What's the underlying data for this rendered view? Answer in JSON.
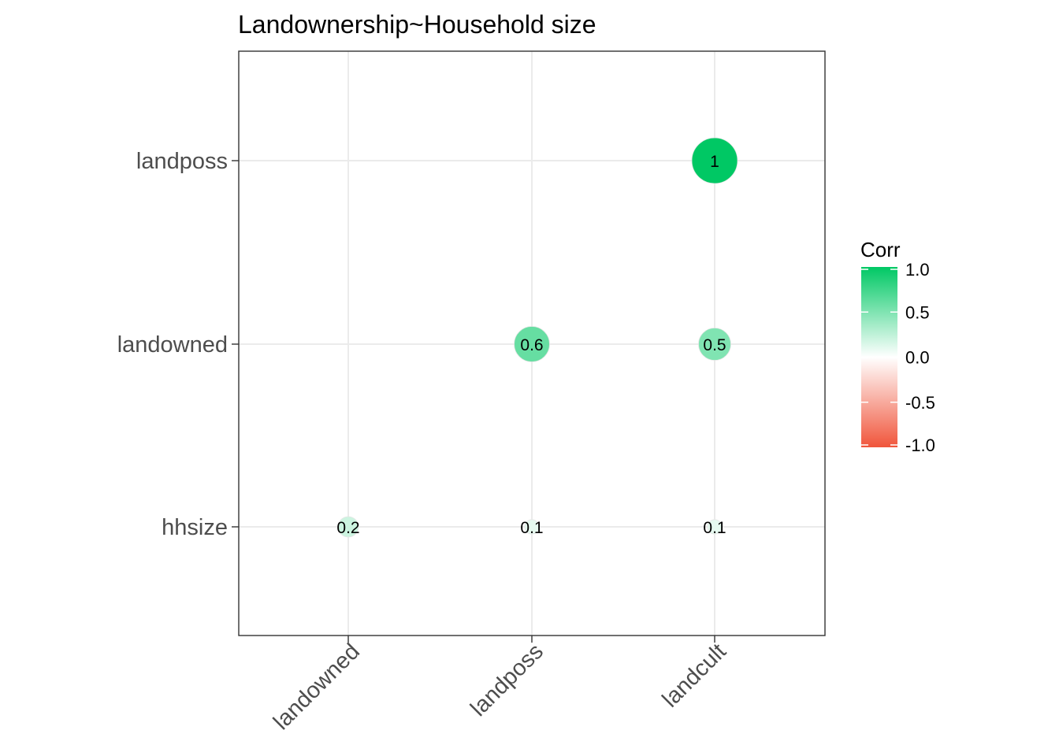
{
  "chart_data": {
    "type": "heatmap",
    "style": "circle correlation matrix (lower triangle)",
    "title": "Landownership~Household size",
    "x_categories": [
      "landowned",
      "landposs",
      "landcult"
    ],
    "y_categories": [
      "hhsize",
      "landowned",
      "landposs"
    ],
    "cells": [
      {
        "x": "landowned",
        "y": "hhsize",
        "value": 0.2,
        "label": "0.2"
      },
      {
        "x": "landposs",
        "y": "hhsize",
        "value": 0.1,
        "label": "0.1"
      },
      {
        "x": "landcult",
        "y": "hhsize",
        "value": 0.1,
        "label": "0.1"
      },
      {
        "x": "landposs",
        "y": "landowned",
        "value": 0.6,
        "label": "0.6"
      },
      {
        "x": "landcult",
        "y": "landowned",
        "value": 0.5,
        "label": "0.5"
      },
      {
        "x": "landcult",
        "y": "landposs",
        "value": 1.0,
        "label": "1"
      }
    ],
    "legend": {
      "title": "Corr",
      "position": "right",
      "ticks": [
        "1.0",
        "0.5",
        "0.0",
        "-0.5",
        "-1.0"
      ],
      "range": [
        -1.0,
        1.0
      ],
      "low_color": "#F0553B",
      "mid_color": "#FFFFFF",
      "high_color": "#00C864"
    },
    "grid": true
  }
}
